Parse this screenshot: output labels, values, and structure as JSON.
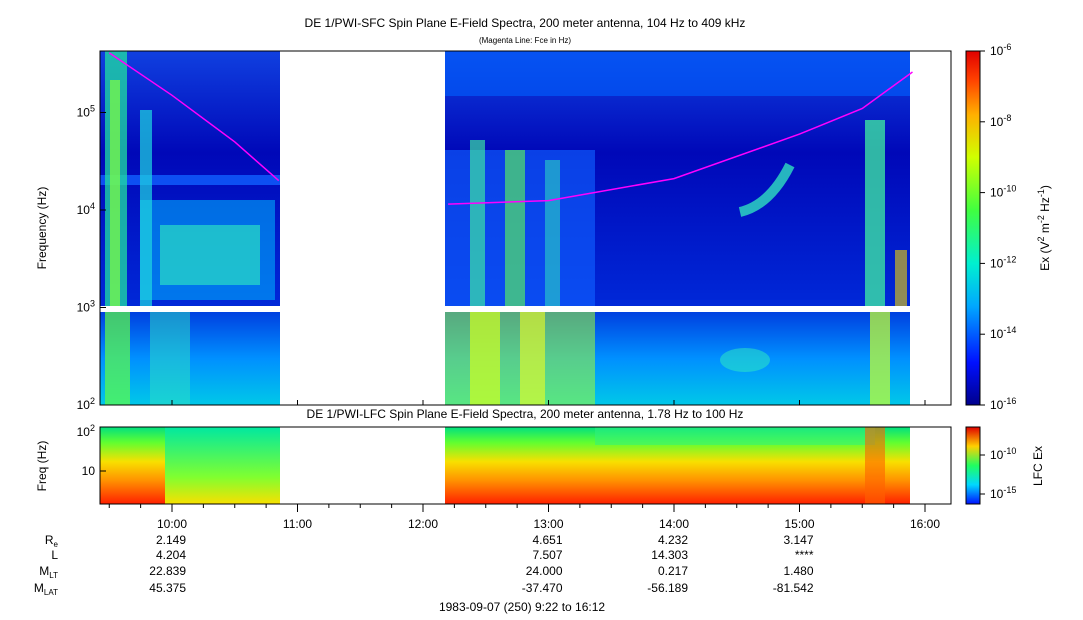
{
  "top_panel": {
    "title": "DE 1/PWI-SFC  Spin Plane E-Field Spectra, 200 meter antenna, 104 Hz to 409 kHz",
    "subtitle": "(Magenta Line: Fce in Hz)",
    "ylabel": "Frequency (Hz)",
    "y_ticks": [
      {
        "base": "10",
        "exp": "2",
        "value": 100
      },
      {
        "base": "10",
        "exp": "3",
        "value": 1000
      },
      {
        "base": "10",
        "exp": "4",
        "value": 10000
      },
      {
        "base": "10",
        "exp": "5",
        "value": 100000
      }
    ],
    "colorbar": {
      "label_parts": [
        "Ex (V",
        "2",
        " m",
        "-2",
        " Hz",
        "-1",
        ")"
      ],
      "ticks": [
        {
          "base": "10",
          "exp": "-6",
          "value": -6
        },
        {
          "base": "10",
          "exp": "-8",
          "value": -8
        },
        {
          "base": "10",
          "exp": "-10",
          "value": -10
        },
        {
          "base": "10",
          "exp": "-12",
          "value": -12
        },
        {
          "base": "10",
          "exp": "-14",
          "value": -14
        },
        {
          "base": "10",
          "exp": "-16",
          "value": -16
        }
      ]
    }
  },
  "bottom_panel": {
    "title": "DE 1/PWI-LFC  Spin Plane E-Field Spectra, 200 meter antenna, 1.78 Hz to 100 Hz",
    "ylabel": "Freq (Hz)",
    "y_ticks": [
      {
        "base": "10",
        "exp": "",
        "value": 10
      },
      {
        "base": "10",
        "exp": "2",
        "value": 100
      }
    ],
    "colorbar": {
      "label": "LFC Ex",
      "ticks": [
        {
          "base": "10",
          "exp": "-10",
          "value": -10
        },
        {
          "base": "10",
          "exp": "-15",
          "value": -15
        }
      ]
    }
  },
  "time_ticks": [
    "10:00",
    "11:00",
    "12:00",
    "13:00",
    "14:00",
    "15:00",
    "16:00"
  ],
  "ephemeris": {
    "labels": [
      {
        "main": "R",
        "sub": "e"
      },
      {
        "main": "L",
        "sub": ""
      },
      {
        "main": "M",
        "sub": "LT"
      },
      {
        "main": "M",
        "sub": "LAT"
      }
    ],
    "columns": [
      {
        "hour": 10,
        "values": [
          "2.149",
          "4.204",
          "22.839",
          "45.375"
        ]
      },
      {
        "hour": 13,
        "values": [
          "4.651",
          "7.507",
          "24.000",
          "-37.470"
        ]
      },
      {
        "hour": 14,
        "values": [
          "4.232",
          "14.303",
          "0.217",
          "-56.189"
        ]
      },
      {
        "hour": 15,
        "values": [
          "3.147",
          "****",
          "1.480",
          "-81.542"
        ]
      }
    ]
  },
  "footer": "1983-09-07 (250) 9:22 to 16:12",
  "chart_data": [
    {
      "type": "heatmap",
      "title": "DE 1/PWI-SFC  Spin Plane E-Field Spectra, 200 meter antenna, 104 Hz to 409 kHz",
      "subtitle": "(Magenta Line: Fce in Hz)",
      "ylabel": "Frequency (Hz)",
      "x_range_hours": [
        9.367,
        16.2
      ],
      "y_scale": "log",
      "ylim": [
        100,
        409000
      ],
      "color_scale": "log",
      "clim_exponent": [
        -16,
        -6
      ],
      "data_gap_hours": [
        10.87,
        12.17
      ],
      "fce_curve": [
        {
          "t": 9.5,
          "f": 409000
        },
        {
          "t": 10.0,
          "f": 150000
        },
        {
          "t": 10.5,
          "f": 50000
        },
        {
          "t": 10.85,
          "f": 20000
        },
        {
          "t": 12.2,
          "f": 11500
        },
        {
          "t": 13.0,
          "f": 12500
        },
        {
          "t": 14.0,
          "f": 21000
        },
        {
          "t": 15.0,
          "f": 60000
        },
        {
          "t": 15.5,
          "f": 110000
        },
        {
          "t": 15.9,
          "f": 260000
        }
      ]
    },
    {
      "type": "heatmap",
      "title": "DE 1/PWI-LFC  Spin Plane E-Field Spectra, 200 meter antenna, 1.78 Hz to 100 Hz",
      "ylabel": "Freq (Hz)",
      "y_scale": "log",
      "ylim": [
        1.78,
        100
      ],
      "color_scale": "log",
      "data_gap_hours": [
        10.87,
        12.17
      ]
    }
  ]
}
